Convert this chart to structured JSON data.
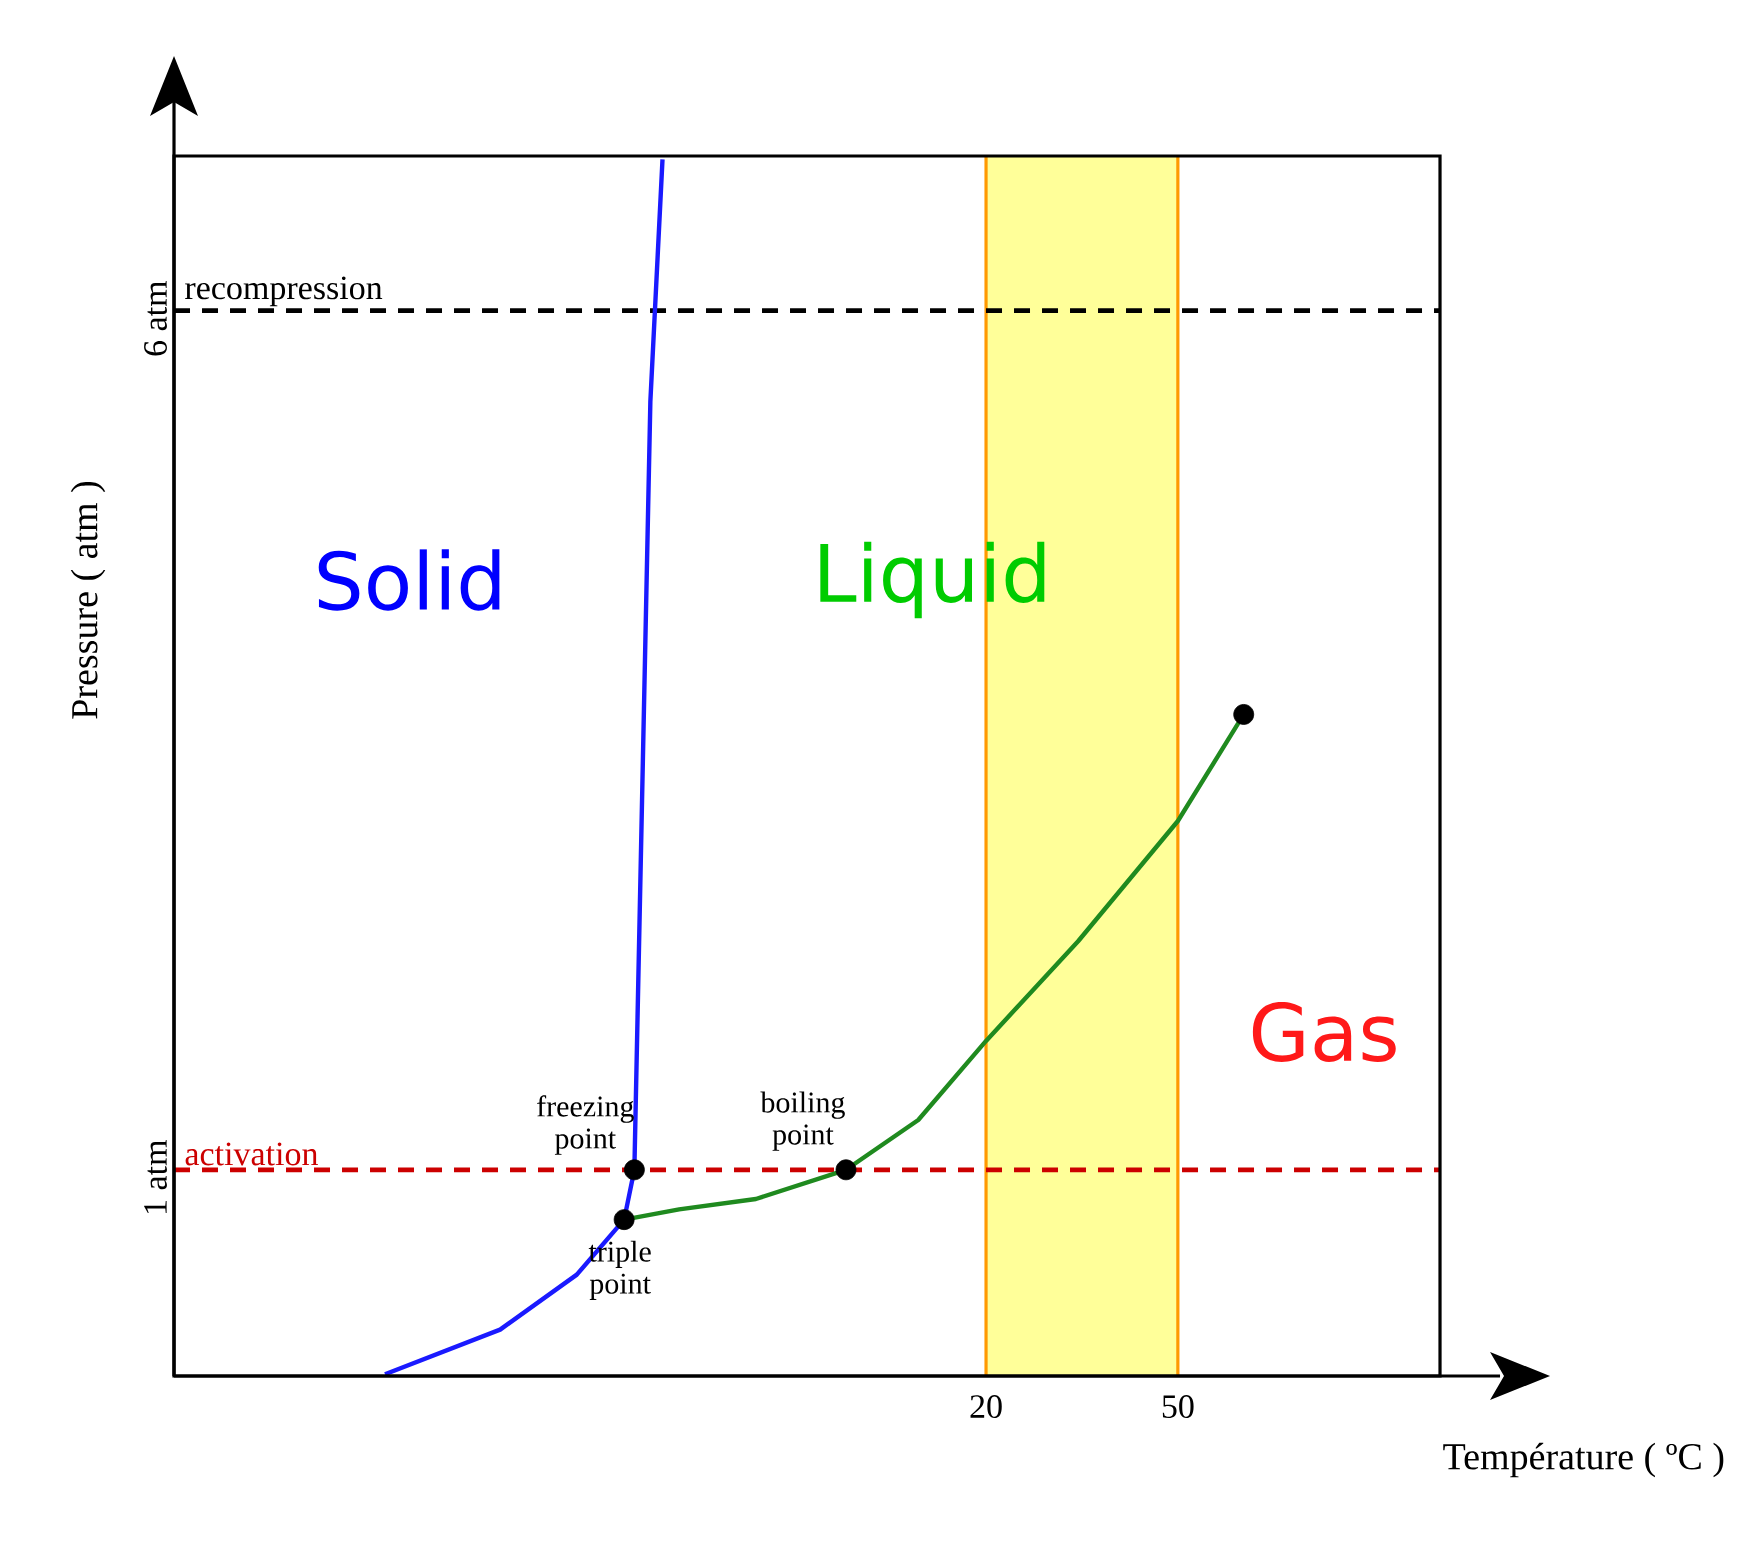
{
  "chart_data": {
    "type": "line",
    "xlabel": "Température ( ºC )",
    "ylabel": "Pressure ( atm )",
    "xlim": [
      -107,
      91
    ],
    "ylim": [
      -0.2,
      6.9
    ],
    "xticks": [
      20,
      50
    ],
    "yticks": [
      {
        "value": 1,
        "label": "1 atm"
      },
      {
        "value": 6,
        "label": "6 atm"
      }
    ],
    "series": [
      {
        "color": "#1a1aff",
        "x": [
          -74,
          -56,
          -44,
          -36.6,
          -35,
          -33.8,
          -32.5,
          -30.6
        ],
        "values": [
          -0.19,
          0.07,
          0.39,
          0.71,
          1.0,
          3.15,
          5.47,
          6.88
        ]
      },
      {
        "color": "#1f8a1f",
        "x": [
          -36.6,
          -28,
          -16,
          -1.9,
          9.4,
          20,
          34.4,
          50,
          60.3
        ],
        "values": [
          0.71,
          0.77,
          0.83,
          1.0,
          1.29,
          1.75,
          2.33,
          3.03,
          3.65
        ]
      },
      {
        "type": "scatter",
        "color": "#000000",
        "marker": "circle",
        "x": [
          -36.6,
          -35,
          -1.9,
          60.3
        ],
        "values": [
          0.71,
          1.0,
          1.0,
          3.65
        ]
      }
    ],
    "ref_lines": [
      {
        "axis": "y",
        "value": 1,
        "label": "activation",
        "color": "#cc0000",
        "line_style": "dashed"
      },
      {
        "axis": "y",
        "value": 6,
        "label": "recompression",
        "color": "#000000",
        "line_style": "dashed"
      }
    ],
    "bands": [
      {
        "axis": "x",
        "from": 20,
        "to": 50,
        "color": "#ffff99"
      }
    ],
    "annotations": [
      {
        "text": "freezing point",
        "x": -35,
        "y": 1.0
      },
      {
        "text": "boiling point",
        "x": -1.9,
        "y": 1.0
      },
      {
        "text": "triple point",
        "x": -36.6,
        "y": 0.71
      },
      "Solid",
      "Liquid",
      "Gas"
    ]
  }
}
